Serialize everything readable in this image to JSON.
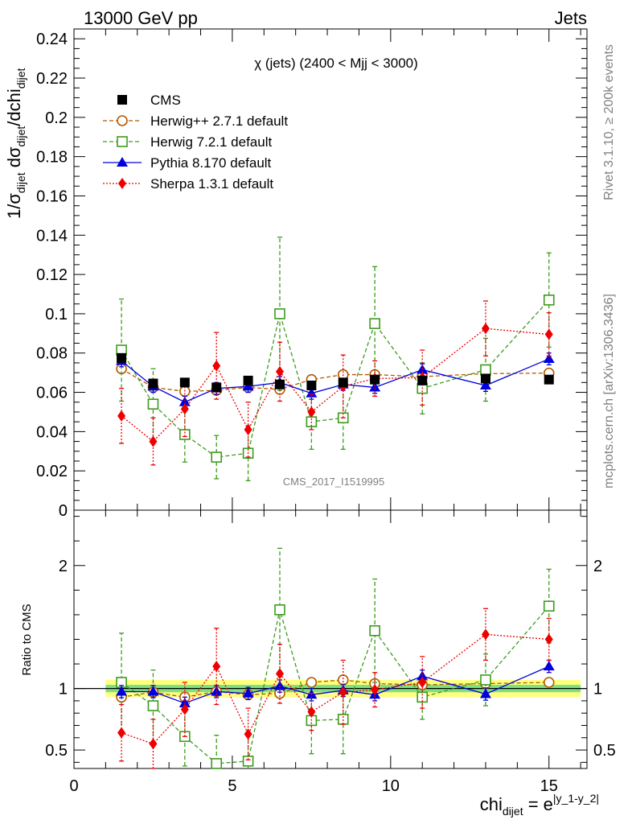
{
  "header": {
    "left": "13000 GeV pp",
    "right": "Jets"
  },
  "side_labels": {
    "rivet": "Rivet 3.1.10, ≥ 200k events",
    "mcplots": "mcplots.cern.ch [arXiv:1306.3436]"
  },
  "plot_title": "χ (jets) (2400 < Mjj < 3000)",
  "analysis_id": "CMS_2017_I1519995",
  "colors": {
    "CMS": "#000000",
    "Herwig++": "#b35900",
    "Herwig 7": "#3d9b1e",
    "Pythia": "#0000dd",
    "Sherpa": "#ee0000",
    "band_outer": "#ffff80",
    "band_inner": "#80e080"
  },
  "chart_data": [
    {
      "type": "scatter",
      "name": "main",
      "ylabel": "1/σdijet dσdijet/dchidijet",
      "ylim": [
        0,
        0.245
      ],
      "xlim": [
        0,
        16.2
      ],
      "yticks": [
        "0",
        "0.02",
        "0.04",
        "0.06",
        "0.08",
        "0.1",
        "0.12",
        "0.14",
        "0.16",
        "0.18",
        "0.2",
        "0.22",
        "0.24"
      ],
      "x": [
        1.5,
        2.5,
        3.5,
        4.5,
        5.5,
        6.5,
        7.5,
        8.5,
        9.5,
        11,
        13,
        15
      ],
      "legend_placement": "top-left",
      "series": [
        {
          "name": "CMS",
          "marker": "square-filled",
          "values": [
            0.0775,
            0.0645,
            0.065,
            0.0625,
            0.066,
            0.064,
            0.0635,
            0.065,
            0.0665,
            0.066,
            0.067,
            0.0665
          ]
        },
        {
          "name": "Herwig++ 2.7.1 default",
          "marker": "circle-open",
          "line": "dashed",
          "values": [
            0.072,
            0.0625,
            0.0605,
            0.061,
            0.0625,
            0.0615,
            0.0665,
            0.069,
            0.069,
            0.068,
            0.0695,
            0.0698
          ],
          "errors": [
            0.002,
            0.002,
            0.002,
            0.002,
            0.002,
            0.002,
            0.002,
            0.002,
            0.002,
            0.002,
            0.002,
            0.002
          ]
        },
        {
          "name": "Herwig 7.2.1 default",
          "marker": "square-open",
          "line": "dashed",
          "values": [
            0.0815,
            0.054,
            0.0385,
            0.027,
            0.029,
            0.1,
            0.045,
            0.047,
            0.095,
            0.062,
            0.0715,
            0.107
          ],
          "errors": [
            0.026,
            0.018,
            0.014,
            0.011,
            0.014,
            0.039,
            0.014,
            0.016,
            0.029,
            0.013,
            0.016,
            0.024
          ]
        },
        {
          "name": "Pythia 8.170 default",
          "marker": "triangle-filled",
          "line": "solid",
          "values": [
            0.076,
            0.063,
            0.055,
            0.062,
            0.063,
            0.065,
            0.0595,
            0.064,
            0.0625,
            0.0715,
            0.0635,
            0.077
          ],
          "errors": [
            0.003,
            0.003,
            0.003,
            0.003,
            0.003,
            0.003,
            0.003,
            0.003,
            0.003,
            0.003,
            0.003,
            0.003
          ]
        },
        {
          "name": "Sherpa 1.3.1 default",
          "marker": "diamond-filled",
          "line": "dotted",
          "values": [
            0.048,
            0.035,
            0.0515,
            0.0735,
            0.041,
            0.0705,
            0.05,
            0.063,
            0.067,
            0.0675,
            0.0925,
            0.0895
          ],
          "errors": [
            0.014,
            0.012,
            0.014,
            0.017,
            0.014,
            0.015,
            0.009,
            0.016,
            0.009,
            0.014,
            0.014,
            0.011
          ]
        }
      ]
    },
    {
      "type": "scatter",
      "name": "ratio",
      "ylabel": "Ratio to CMS",
      "xlabel": "chidijet = e|y_1-y_2|",
      "ylim": [
        0.35,
        2.45
      ],
      "xlim": [
        0,
        16.2
      ],
      "yticks": [
        "0.5",
        "1",
        "2"
      ],
      "xticks": [
        "0",
        "5",
        "10",
        "15"
      ],
      "reference_band": {
        "inner": 0.03,
        "outer": 0.07
      },
      "x": [
        1.5,
        2.5,
        3.5,
        4.5,
        5.5,
        6.5,
        7.5,
        8.5,
        9.5,
        11,
        13,
        15
      ],
      "series": [
        {
          "name": "Herwig++ 2.7.1 default",
          "values": [
            0.93,
            0.97,
            0.93,
            0.975,
            0.95,
            0.96,
            1.05,
            1.07,
            1.04,
            1.03,
            1.04,
            1.05
          ],
          "errors": [
            0.03,
            0.03,
            0.03,
            0.03,
            0.03,
            0.03,
            0.03,
            0.03,
            0.03,
            0.03,
            0.03,
            0.03
          ]
        },
        {
          "name": "Herwig 7.2.1 default",
          "values": [
            1.05,
            0.86,
            0.61,
            0.39,
            0.41,
            1.64,
            0.74,
            0.75,
            1.47,
            0.93,
            1.07,
            1.67
          ],
          "errors": [
            0.4,
            0.29,
            0.24,
            0.23,
            0.23,
            0.5,
            0.27,
            0.28,
            0.42,
            0.18,
            0.21,
            0.3
          ]
        },
        {
          "name": "Pythia 8.170 default",
          "values": [
            0.975,
            0.975,
            0.88,
            0.975,
            0.96,
            1.02,
            0.95,
            0.985,
            0.95,
            1.1,
            0.955,
            1.18
          ],
          "errors": [
            0.05,
            0.05,
            0.05,
            0.05,
            0.05,
            0.05,
            0.05,
            0.05,
            0.05,
            0.05,
            0.05,
            0.05
          ]
        },
        {
          "name": "Sherpa 1.3.1 default",
          "values": [
            0.64,
            0.55,
            0.83,
            1.18,
            0.63,
            1.12,
            0.81,
            0.97,
            0.99,
            1.05,
            1.44,
            1.4
          ],
          "errors": [
            0.23,
            0.2,
            0.22,
            0.31,
            0.21,
            0.24,
            0.15,
            0.26,
            0.14,
            0.21,
            0.21,
            0.17
          ]
        }
      ]
    }
  ]
}
